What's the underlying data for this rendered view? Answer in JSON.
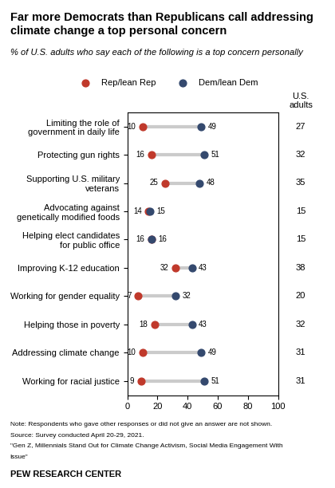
{
  "chart_data": {
    "type": "dot",
    "title": "Far more Democrats than Republicans call addressing\nclimate change a top personal concern",
    "subtitle": "% of U.S. adults who say each of the following is a top concern personally",
    "categories": [
      "Working for racial justice",
      "Addressing climate change",
      "Helping those in poverty",
      "Working for gender equality",
      "Improving K-12 education",
      "Helping elect candidates\nfor public office",
      "Advocating against\ngenetically modified foods",
      "Supporting U.S. military\nveterans",
      "Protecting gun rights",
      "Limiting the role of\ngovernment in daily life"
    ],
    "series": [
      {
        "name": "Rep/lean Rep",
        "color": "#c0392b",
        "values": [
          9,
          10,
          18,
          7,
          32,
          16,
          14,
          25,
          16,
          10
        ]
      },
      {
        "name": "Dem/lean Dem",
        "color": "#34496e",
        "values": [
          51,
          49,
          43,
          32,
          43,
          16,
          15,
          48,
          51,
          49
        ]
      },
      {
        "name": "U.S.\nadults",
        "type": "text",
        "values": [
          31,
          31,
          32,
          20,
          38,
          15,
          15,
          35,
          32,
          27
        ]
      }
    ],
    "xlim": [
      0,
      100
    ],
    "xticks": [
      0,
      20,
      40,
      60,
      80,
      100
    ],
    "data_labels": true,
    "legend": "upper center",
    "annotations": [
      "Note: Respondents who gave other responses or did not give an answer are not shown.",
      "Source: Survey conducted April 20-29, 2021.",
      "\"Gen Z, Millennials Stand Out for Climate Change Activism, Social Media Engagement With",
      "Issue\""
    ],
    "source": "PEW RESEARCH CENTER"
  }
}
